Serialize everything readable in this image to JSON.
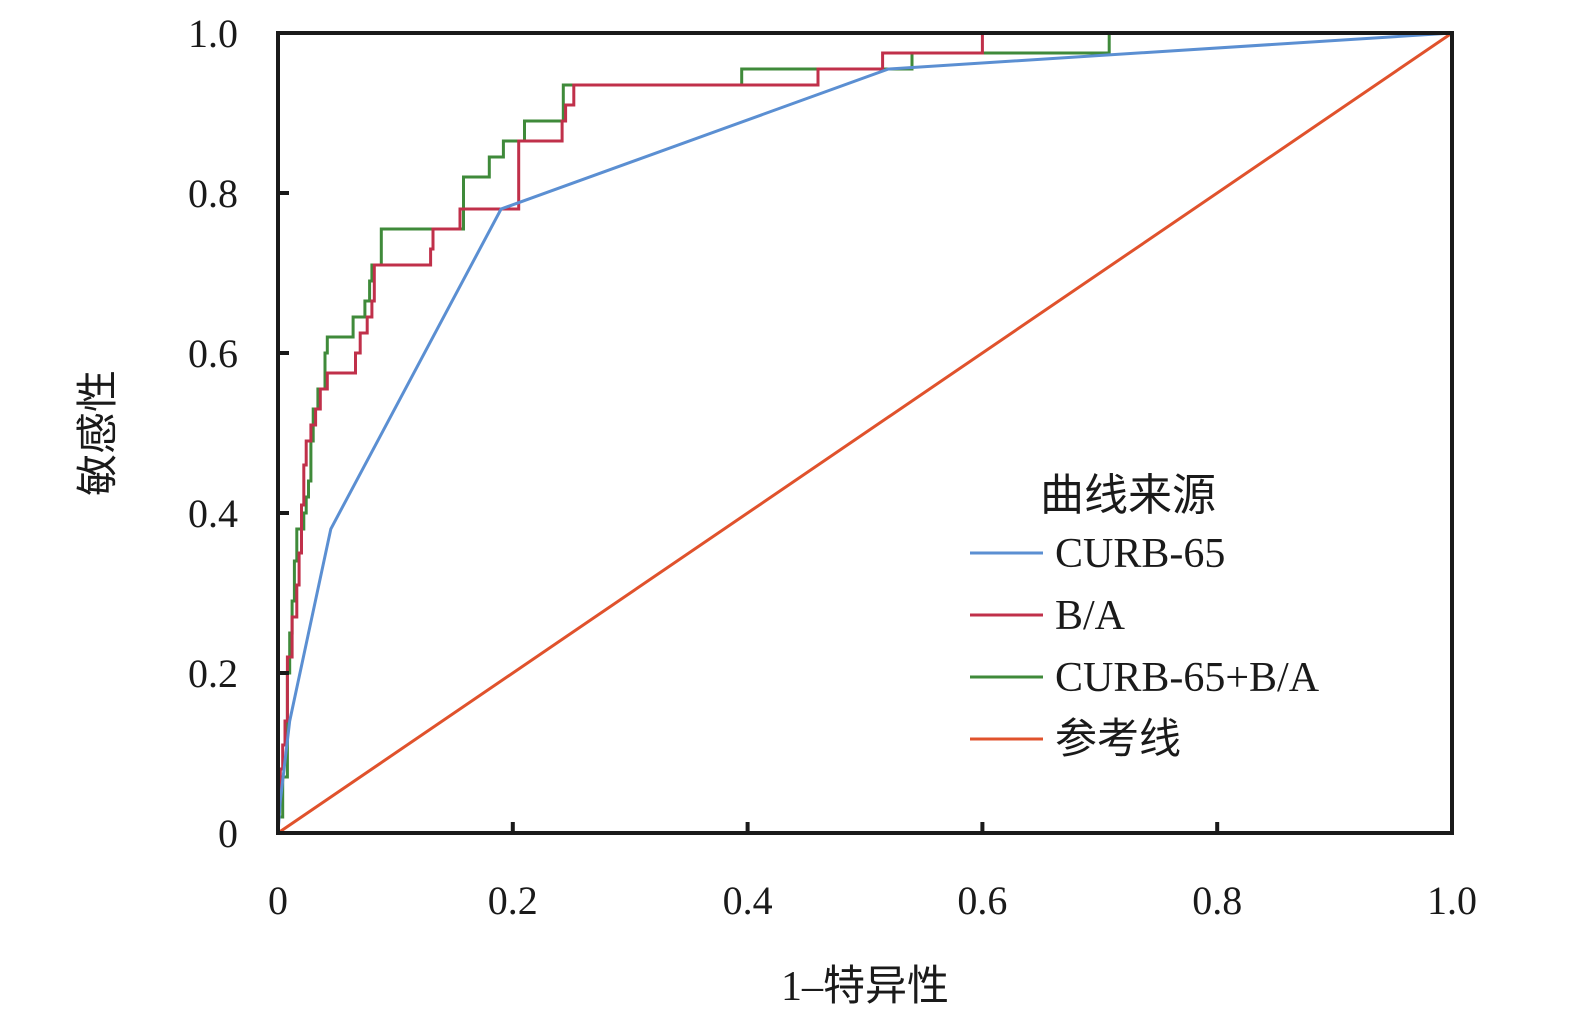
{
  "chart_data": {
    "type": "line",
    "title": "",
    "xlabel": "1–特异性",
    "ylabel": "敏感性",
    "xlim": [
      0,
      1
    ],
    "ylim": [
      0,
      1
    ],
    "x_ticks": [
      0,
      0.2,
      0.4,
      0.6,
      0.8,
      1.0
    ],
    "y_ticks": [
      0,
      0.2,
      0.4,
      0.6,
      0.8,
      1.0
    ],
    "x_tick_labels": [
      "0",
      "0.2",
      "0.4",
      "0.6",
      "0.8",
      "1.0"
    ],
    "y_tick_labels": [
      "0",
      "0.2",
      "0.4",
      "0.6",
      "0.8",
      "1.0"
    ],
    "grid": false,
    "legend": {
      "title": "曲线来源",
      "placement": "bottom-right"
    },
    "series": [
      {
        "name": "CURB-65",
        "color": "#5b8fd2",
        "step": false,
        "points": [
          [
            0,
            0
          ],
          [
            0.002,
            0.04
          ],
          [
            0.01,
            0.14
          ],
          [
            0.045,
            0.38
          ],
          [
            0.19,
            0.78
          ],
          [
            0.52,
            0.955
          ],
          [
            1.0,
            1.0
          ]
        ]
      },
      {
        "name": "B/A",
        "color": "#c0304a",
        "step": true,
        "points": [
          [
            0,
            0
          ],
          [
            0,
            0.04
          ],
          [
            0.002,
            0.04
          ],
          [
            0.002,
            0.08
          ],
          [
            0.004,
            0.08
          ],
          [
            0.004,
            0.11
          ],
          [
            0.006,
            0.11
          ],
          [
            0.006,
            0.14
          ],
          [
            0.008,
            0.14
          ],
          [
            0.008,
            0.22
          ],
          [
            0.012,
            0.22
          ],
          [
            0.012,
            0.27
          ],
          [
            0.016,
            0.27
          ],
          [
            0.016,
            0.31
          ],
          [
            0.018,
            0.31
          ],
          [
            0.018,
            0.35
          ],
          [
            0.02,
            0.35
          ],
          [
            0.02,
            0.41
          ],
          [
            0.022,
            0.41
          ],
          [
            0.022,
            0.46
          ],
          [
            0.024,
            0.46
          ],
          [
            0.024,
            0.49
          ],
          [
            0.028,
            0.49
          ],
          [
            0.028,
            0.51
          ],
          [
            0.032,
            0.51
          ],
          [
            0.032,
            0.53
          ],
          [
            0.036,
            0.53
          ],
          [
            0.036,
            0.555
          ],
          [
            0.042,
            0.555
          ],
          [
            0.042,
            0.575
          ],
          [
            0.066,
            0.575
          ],
          [
            0.066,
            0.6
          ],
          [
            0.07,
            0.6
          ],
          [
            0.07,
            0.625
          ],
          [
            0.076,
            0.625
          ],
          [
            0.076,
            0.645
          ],
          [
            0.08,
            0.645
          ],
          [
            0.08,
            0.665
          ],
          [
            0.082,
            0.665
          ],
          [
            0.082,
            0.71
          ],
          [
            0.13,
            0.71
          ],
          [
            0.13,
            0.73
          ],
          [
            0.132,
            0.73
          ],
          [
            0.132,
            0.755
          ],
          [
            0.155,
            0.755
          ],
          [
            0.155,
            0.78
          ],
          [
            0.205,
            0.78
          ],
          [
            0.205,
            0.865
          ],
          [
            0.242,
            0.865
          ],
          [
            0.242,
            0.89
          ],
          [
            0.245,
            0.89
          ],
          [
            0.245,
            0.91
          ],
          [
            0.252,
            0.91
          ],
          [
            0.252,
            0.935
          ],
          [
            0.46,
            0.935
          ],
          [
            0.46,
            0.955
          ],
          [
            0.515,
            0.955
          ],
          [
            0.515,
            0.975
          ],
          [
            0.6,
            0.975
          ],
          [
            0.6,
            1.0
          ],
          [
            1.0,
            1.0
          ]
        ]
      },
      {
        "name": "CURB-65+B/A",
        "color": "#3f8a3a",
        "step": true,
        "points": [
          [
            0,
            0
          ],
          [
            0,
            0.02
          ],
          [
            0.004,
            0.02
          ],
          [
            0.004,
            0.07
          ],
          [
            0.008,
            0.07
          ],
          [
            0.008,
            0.2
          ],
          [
            0.01,
            0.2
          ],
          [
            0.01,
            0.25
          ],
          [
            0.012,
            0.25
          ],
          [
            0.012,
            0.29
          ],
          [
            0.014,
            0.29
          ],
          [
            0.014,
            0.34
          ],
          [
            0.016,
            0.34
          ],
          [
            0.016,
            0.38
          ],
          [
            0.022,
            0.38
          ],
          [
            0.022,
            0.4
          ],
          [
            0.024,
            0.4
          ],
          [
            0.024,
            0.42
          ],
          [
            0.026,
            0.42
          ],
          [
            0.026,
            0.44
          ],
          [
            0.028,
            0.44
          ],
          [
            0.028,
            0.49
          ],
          [
            0.03,
            0.49
          ],
          [
            0.03,
            0.53
          ],
          [
            0.034,
            0.53
          ],
          [
            0.034,
            0.555
          ],
          [
            0.04,
            0.555
          ],
          [
            0.04,
            0.6
          ],
          [
            0.042,
            0.6
          ],
          [
            0.042,
            0.62
          ],
          [
            0.064,
            0.62
          ],
          [
            0.064,
            0.645
          ],
          [
            0.074,
            0.645
          ],
          [
            0.074,
            0.665
          ],
          [
            0.078,
            0.665
          ],
          [
            0.078,
            0.69
          ],
          [
            0.08,
            0.69
          ],
          [
            0.08,
            0.71
          ],
          [
            0.088,
            0.71
          ],
          [
            0.088,
            0.755
          ],
          [
            0.158,
            0.755
          ],
          [
            0.158,
            0.82
          ],
          [
            0.18,
            0.82
          ],
          [
            0.18,
            0.845
          ],
          [
            0.192,
            0.845
          ],
          [
            0.192,
            0.865
          ],
          [
            0.21,
            0.865
          ],
          [
            0.21,
            0.89
          ],
          [
            0.243,
            0.89
          ],
          [
            0.243,
            0.935
          ],
          [
            0.395,
            0.935
          ],
          [
            0.395,
            0.955
          ],
          [
            0.54,
            0.955
          ],
          [
            0.54,
            0.975
          ],
          [
            0.708,
            0.975
          ],
          [
            0.708,
            1.0
          ],
          [
            1.0,
            1.0
          ]
        ]
      },
      {
        "name": "参考线",
        "color": "#e0522c",
        "step": false,
        "points": [
          [
            0,
            0
          ],
          [
            1,
            1
          ]
        ]
      }
    ]
  }
}
